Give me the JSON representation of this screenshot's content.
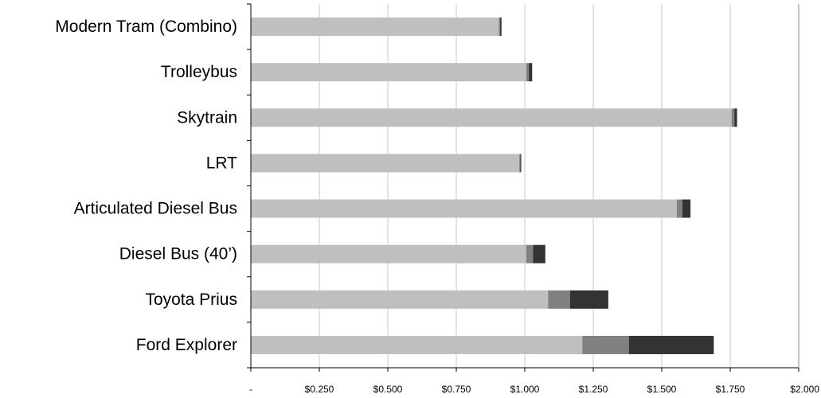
{
  "chart_data": {
    "type": "bar",
    "orientation": "horizontal",
    "stacked": true,
    "categories": [
      "Modern Tram (Combino)",
      "Trolleybus",
      "Skytrain",
      "LRT",
      "Articulated Diesel Bus",
      "Diesel Bus (40’)",
      "Toyota Prius",
      "Ford Explorer"
    ],
    "series": [
      {
        "color": "#bfbfbf",
        "values": [
          0.905,
          1.005,
          1.755,
          0.98,
          1.555,
          1.005,
          1.085,
          1.21
        ]
      },
      {
        "color": "#808080",
        "values": [
          0.005,
          0.01,
          0.01,
          0.004,
          0.02,
          0.025,
          0.08,
          0.17
        ]
      },
      {
        "color": "#333333",
        "values": [
          0.005,
          0.012,
          0.01,
          0.003,
          0.03,
          0.045,
          0.14,
          0.31
        ]
      }
    ],
    "xlim": [
      0,
      2.0
    ],
    "xticks": [
      0,
      0.25,
      0.5,
      0.75,
      1.0,
      1.25,
      1.5,
      1.75,
      2.0
    ],
    "xtick_labels": [
      "-",
      "$0.250",
      "$0.500",
      "$0.750",
      "$1.000",
      "$1.250",
      "$1.500",
      "$1.750",
      "$2.000"
    ],
    "grid": "vertical",
    "title": "",
    "xlabel": "",
    "ylabel": ""
  }
}
